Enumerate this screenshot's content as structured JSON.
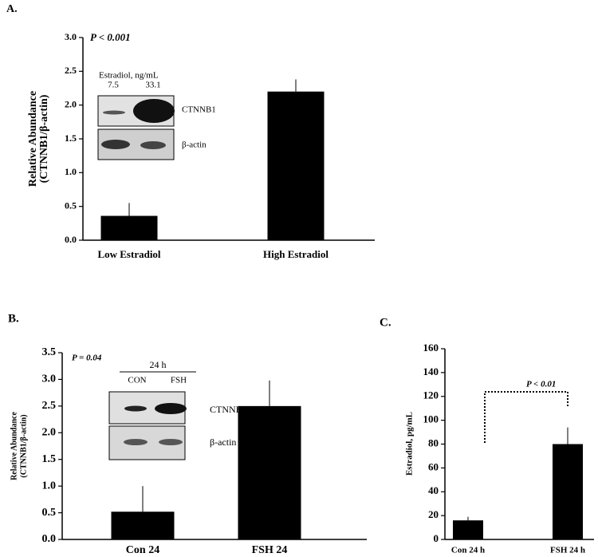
{
  "chart_data": [
    {
      "type": "bar",
      "title": "A.",
      "ylabel": [
        "Relative Abundance",
        "(CTNNB1/β-actin)"
      ],
      "annotation": "P < 0.001",
      "categories": [
        "Low Estradiol",
        "High Estradiol"
      ],
      "values": [
        0.36,
        2.2
      ],
      "errors": [
        0.19,
        0.18
      ],
      "color": "#000000",
      "ylim": [
        0,
        3
      ],
      "yticks": [
        {
          "value": 0,
          "label": "0.0"
        },
        {
          "value": 0.5,
          "label": "0.5"
        },
        {
          "value": 1,
          "label": "1.0"
        },
        {
          "value": 1.5,
          "label": "1.5"
        },
        {
          "value": 2,
          "label": "2.0"
        },
        {
          "value": 2.5,
          "label": "2.5"
        },
        {
          "value": 3,
          "label": "3.0"
        }
      ],
      "inset": {
        "heading": "Estradiol, ng/mL",
        "lanes": [
          "7.5",
          "33.1"
        ],
        "bands": [
          "CTNNB1",
          "β-actin"
        ]
      }
    },
    {
      "type": "bar",
      "title": "B.",
      "ylabel": [
        "Relative Abundance",
        "(CTNNB1/β-actin)"
      ],
      "annotation": "P = 0.04",
      "categories": [
        "Con 24",
        "FSH 24"
      ],
      "values": [
        0.52,
        2.5
      ],
      "errors": [
        0.48,
        0.48
      ],
      "color": "#000000",
      "ylim": [
        0,
        3.5
      ],
      "yticks": [
        {
          "value": 0,
          "label": "0.0"
        },
        {
          "value": 0.5,
          "label": "0.5"
        },
        {
          "value": 1,
          "label": "1.0"
        },
        {
          "value": 1.5,
          "label": "1.5"
        },
        {
          "value": 2,
          "label": "2.0"
        },
        {
          "value": 2.5,
          "label": "2.5"
        },
        {
          "value": 3,
          "label": "3.0"
        },
        {
          "value": 3.5,
          "label": "3.5"
        }
      ],
      "inset": {
        "heading": "24 h",
        "lanes": [
          "CON",
          "FSH"
        ],
        "bands": [
          "CTNNB1",
          "β-actin"
        ]
      }
    },
    {
      "type": "bar",
      "title": "C.",
      "ylabel": [
        "Estradiol, pg/mL"
      ],
      "annotation": "P < 0.01",
      "categories": [
        "Con 24 h",
        "FSH 24 h"
      ],
      "values": [
        16,
        80
      ],
      "errors": [
        3,
        14
      ],
      "color": "#000000",
      "ylim": [
        0,
        160
      ],
      "yticks": [
        0,
        20,
        40,
        60,
        80,
        100,
        120,
        140,
        160
      ]
    }
  ]
}
